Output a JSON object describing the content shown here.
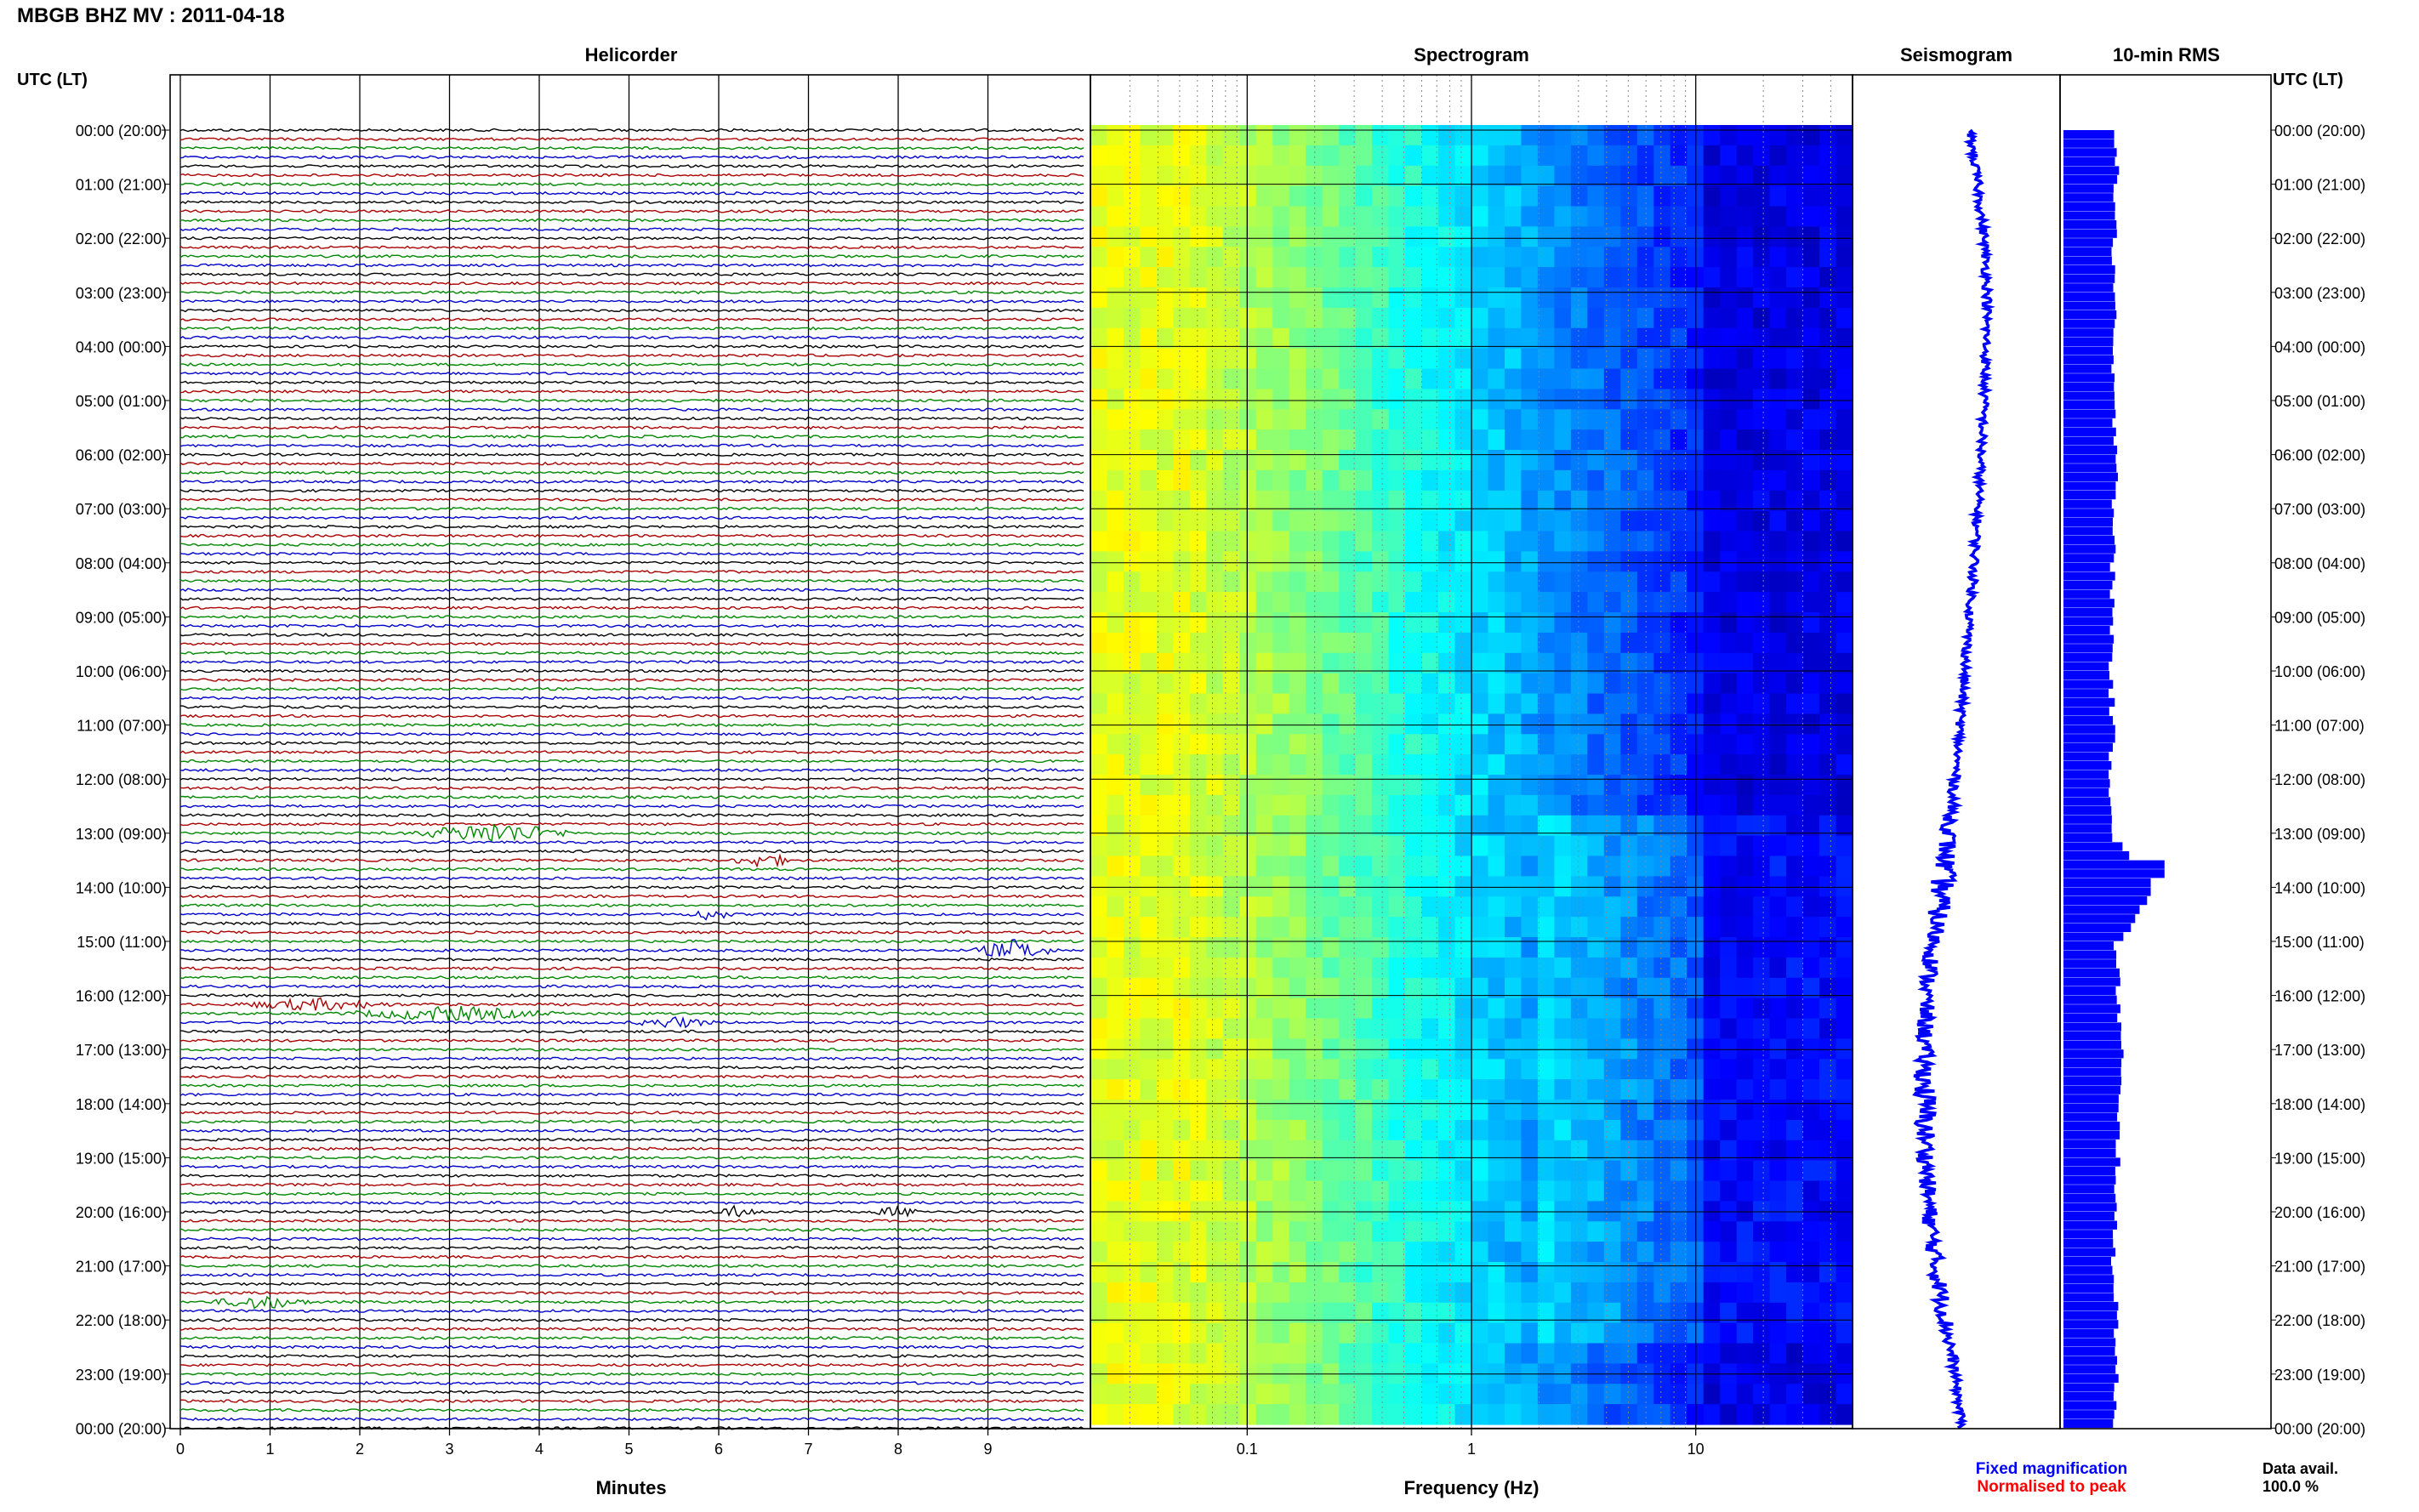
{
  "header": {
    "title": "MBGB BHZ MV : 2011-04-18",
    "left_time_label": "UTC (LT)",
    "right_time_label": "UTC (LT)"
  },
  "panels": {
    "helicorder": "Helicorder",
    "spectrogram": "Spectrogram",
    "seismogram": "Seismogram",
    "rms": "10-min RMS"
  },
  "axes": {
    "helicorder_xlabel": "Minutes",
    "spectrogram_xlabel": "Frequency (Hz)"
  },
  "legend": {
    "fixed": "Fixed magnification",
    "normalised": "Normalised to peak",
    "fixed_color": "#0000ff",
    "normalised_color": "#ff0000"
  },
  "data_avail": {
    "label": "Data avail.",
    "value": "100.0 %"
  },
  "colors": {
    "trace_cycle": [
      "#000000",
      "#aa0000",
      "#008800",
      "#0000cc"
    ],
    "rms_bar": "#0000ff",
    "seismogram": "#0000ff"
  },
  "chart_data": [
    {
      "type": "line",
      "panel": "helicorder",
      "title": "Helicorder",
      "xlabel": "Minutes",
      "x_ticks": [
        "0",
        "1",
        "2",
        "3",
        "4",
        "5",
        "6",
        "7",
        "8",
        "9"
      ],
      "xlim": [
        0,
        10
      ],
      "row_labels": [
        "00:00 (20:00)",
        "01:00 (21:00)",
        "02:00 (22:00)",
        "03:00 (23:00)",
        "04:00 (00:00)",
        "05:00 (01:00)",
        "06:00 (02:00)",
        "07:00 (03:00)",
        "08:00 (04:00)",
        "09:00 (05:00)",
        "10:00 (06:00)",
        "11:00 (07:00)",
        "12:00 (08:00)",
        "13:00 (09:00)",
        "14:00 (10:00)",
        "15:00 (11:00)",
        "16:00 (12:00)",
        "17:00 (13:00)",
        "18:00 (14:00)",
        "19:00 (15:00)",
        "20:00 (16:00)",
        "21:00 (17:00)",
        "22:00 (18:00)",
        "23:00 (19:00)",
        "00:00 (20:00)"
      ],
      "traces_per_hour": 6,
      "events": [
        {
          "row": 78,
          "minute": 3.5,
          "amp": 3.0,
          "width": 1.0
        },
        {
          "row": 81,
          "minute": 6.5,
          "amp": 2.0,
          "width": 0.4
        },
        {
          "row": 87,
          "minute": 5.9,
          "amp": 1.6,
          "width": 0.3
        },
        {
          "row": 91,
          "minute": 9.3,
          "amp": 3.0,
          "width": 0.5
        },
        {
          "row": 97,
          "minute": 1.5,
          "amp": 1.6,
          "width": 1.0
        },
        {
          "row": 98,
          "minute": 3.0,
          "amp": 2.0,
          "width": 1.3
        },
        {
          "row": 99,
          "minute": 5.5,
          "amp": 1.5,
          "width": 0.5
        },
        {
          "row": 120,
          "minute": 6.2,
          "amp": 1.6,
          "width": 0.3
        },
        {
          "row": 120,
          "minute": 8.0,
          "amp": 1.4,
          "width": 0.3
        },
        {
          "row": 130,
          "minute": 0.9,
          "amp": 2.0,
          "width": 0.6
        }
      ]
    },
    {
      "type": "heatmap",
      "panel": "spectrogram",
      "title": "Spectrogram",
      "xlabel": "Frequency (Hz)",
      "x_scale": "log",
      "xlim": [
        0.02,
        50
      ],
      "x_ticks": [
        "0.1",
        "1",
        "10"
      ],
      "colormap": "jet"
    },
    {
      "type": "line",
      "panel": "seismogram",
      "title": "Seismogram",
      "hour_offsets": [
        3,
        8,
        12,
        14,
        13,
        12,
        10,
        8,
        6,
        3,
        0,
        -3,
        -6,
        -10,
        -14,
        -19,
        -24,
        -25,
        -25,
        -24,
        -22,
        -18,
        -12,
        -6,
        -2
      ],
      "noise_by_hour": [
        1,
        1,
        1,
        1,
        1,
        1,
        1,
        1,
        1,
        1,
        1,
        1,
        1,
        2,
        3,
        2,
        2,
        2,
        3,
        2,
        2,
        2,
        2,
        1,
        1
      ]
    },
    {
      "type": "bar",
      "panel": "rms",
      "title": "10-min RMS",
      "orientation": "horizontal",
      "hour_values": [
        35,
        34,
        33,
        33,
        32,
        32,
        36,
        33,
        32,
        32,
        31,
        32,
        31,
        33,
        60,
        34,
        36,
        38,
        35,
        36,
        33,
        33,
        35,
        34,
        33
      ],
      "bursts": [
        {
          "hour": 13.6,
          "value": 66
        },
        {
          "hour": 14.0,
          "value": 57
        }
      ]
    }
  ]
}
